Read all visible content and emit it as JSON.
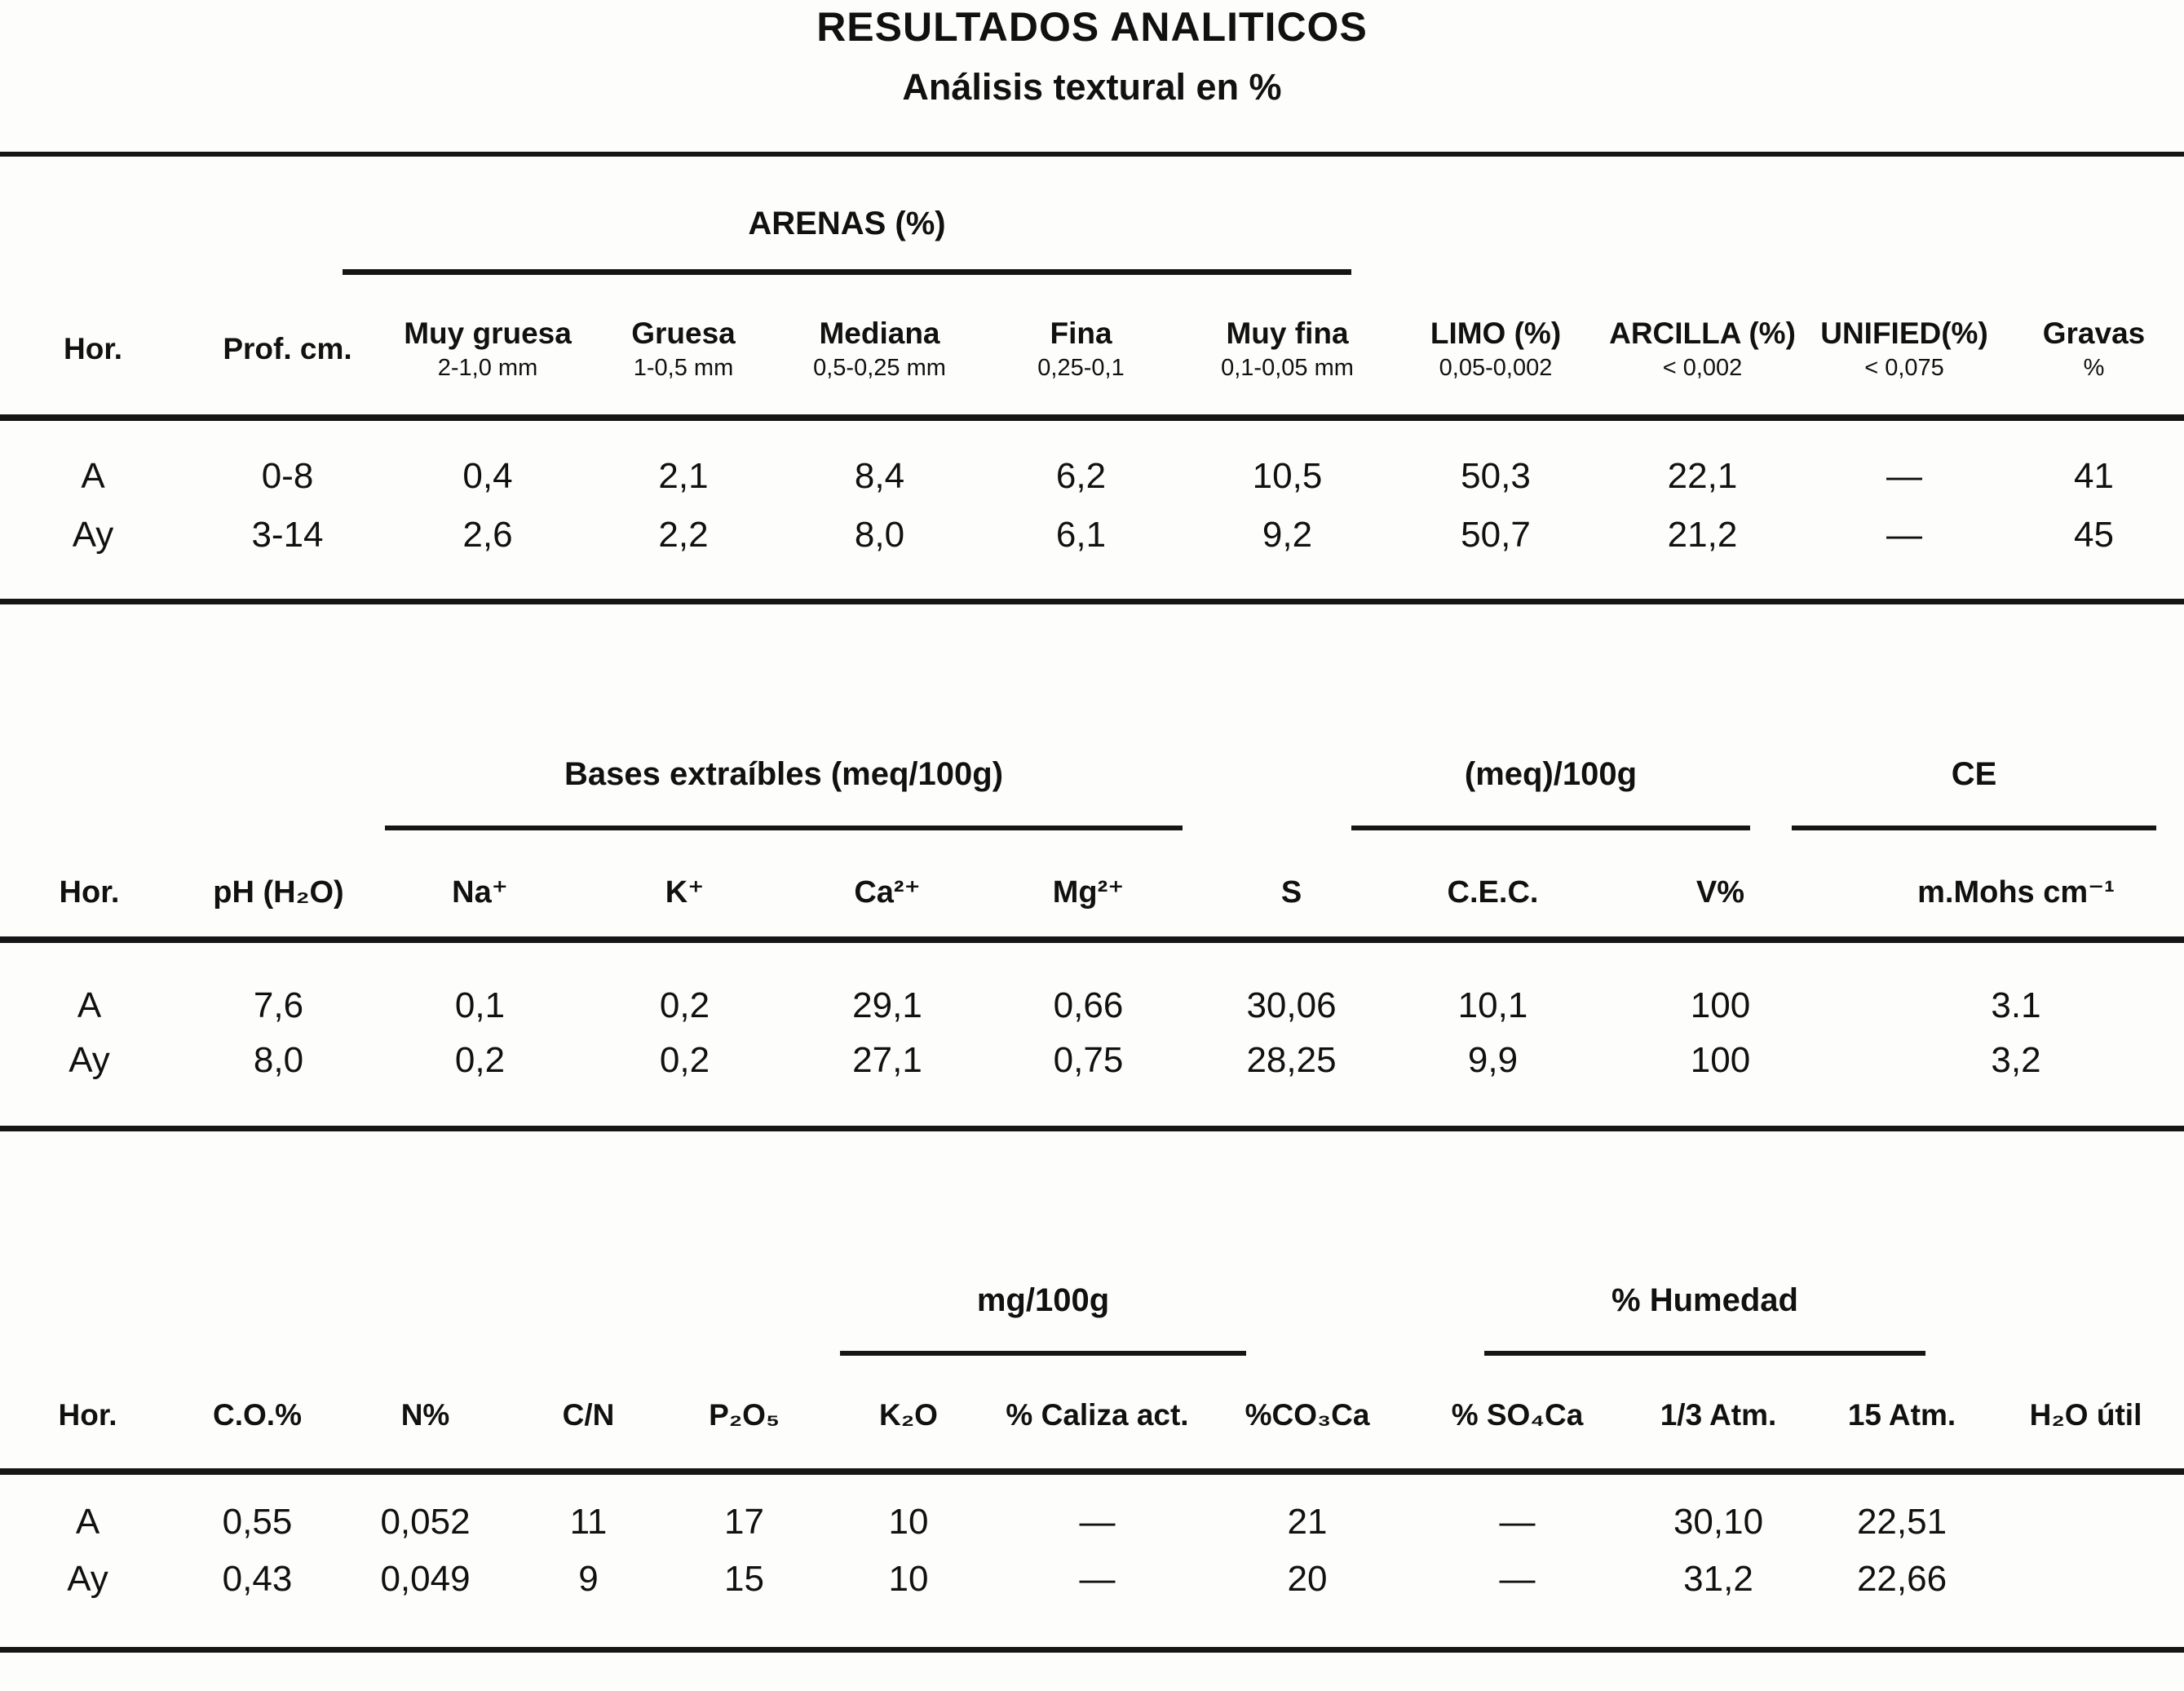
{
  "title": "RESULTADOS ANALITICOS",
  "subtitle": "Análisis textural en %",
  "table1": {
    "group_header": "ARENAS (%)",
    "columns": [
      {
        "label": "Hor.",
        "sub": ""
      },
      {
        "label": "Prof. cm.",
        "sub": ""
      },
      {
        "label": "Muy gruesa",
        "sub": "2-1,0 mm"
      },
      {
        "label": "Gruesa",
        "sub": "1-0,5 mm"
      },
      {
        "label": "Mediana",
        "sub": "0,5-0,25 mm"
      },
      {
        "label": "Fina",
        "sub": "0,25-0,1"
      },
      {
        "label": "Muy fina",
        "sub": "0,1-0,05 mm"
      },
      {
        "label": "LIMO (%)",
        "sub": "0,05-0,002"
      },
      {
        "label": "ARCILLA (%)",
        "sub": "< 0,002"
      },
      {
        "label": "UNIFIED(%)",
        "sub": "< 0,075"
      },
      {
        "label": "Gravas",
        "sub": "%"
      }
    ],
    "rows": [
      [
        "A",
        "0-8",
        "0,4",
        "2,1",
        "8,4",
        "6,2",
        "10,5",
        "50,3",
        "22,1",
        "—",
        "41"
      ],
      [
        "Ay",
        "3-14",
        "2,6",
        "2,2",
        "8,0",
        "6,1",
        "9,2",
        "50,7",
        "21,2",
        "—",
        "45"
      ]
    ]
  },
  "table2": {
    "group_headers": {
      "bases": "Bases extraíbles (meq/100g)",
      "meq": "(meq)/100g",
      "ce": "CE"
    },
    "columns": [
      "Hor.",
      "pH (H₂O)",
      "Na⁺",
      "K⁺",
      "Ca²⁺",
      "Mg²⁺",
      "S",
      "C.E.C.",
      "V%",
      "m.Mohs cm⁻¹"
    ],
    "rows": [
      [
        "A",
        "7,6",
        "0,1",
        "0,2",
        "29,1",
        "0,66",
        "30,06",
        "10,1",
        "100",
        "3.1"
      ],
      [
        "Ay",
        "8,0",
        "0,2",
        "0,2",
        "27,1",
        "0,75",
        "28,25",
        "9,9",
        "100",
        "3,2"
      ]
    ]
  },
  "table3": {
    "group_headers": {
      "mg": "mg/100g",
      "humedad": "% Humedad"
    },
    "columns": [
      "Hor.",
      "C.O.%",
      "N%",
      "C/N",
      "P₂O₅",
      "K₂O",
      "% Caliza act.",
      "%CO₃Ca",
      "% SO₄Ca",
      "1/3 Atm.",
      "15 Atm.",
      "H₂O útil"
    ],
    "rows": [
      [
        "A",
        "0,55",
        "0,052",
        "11",
        "17",
        "10",
        "—",
        "21",
        "—",
        "30,10",
        "22,51",
        ""
      ],
      [
        "Ay",
        "0,43",
        "0,049",
        "9",
        "15",
        "10",
        "—",
        "20",
        "—",
        "31,2",
        "22,66",
        ""
      ]
    ]
  }
}
